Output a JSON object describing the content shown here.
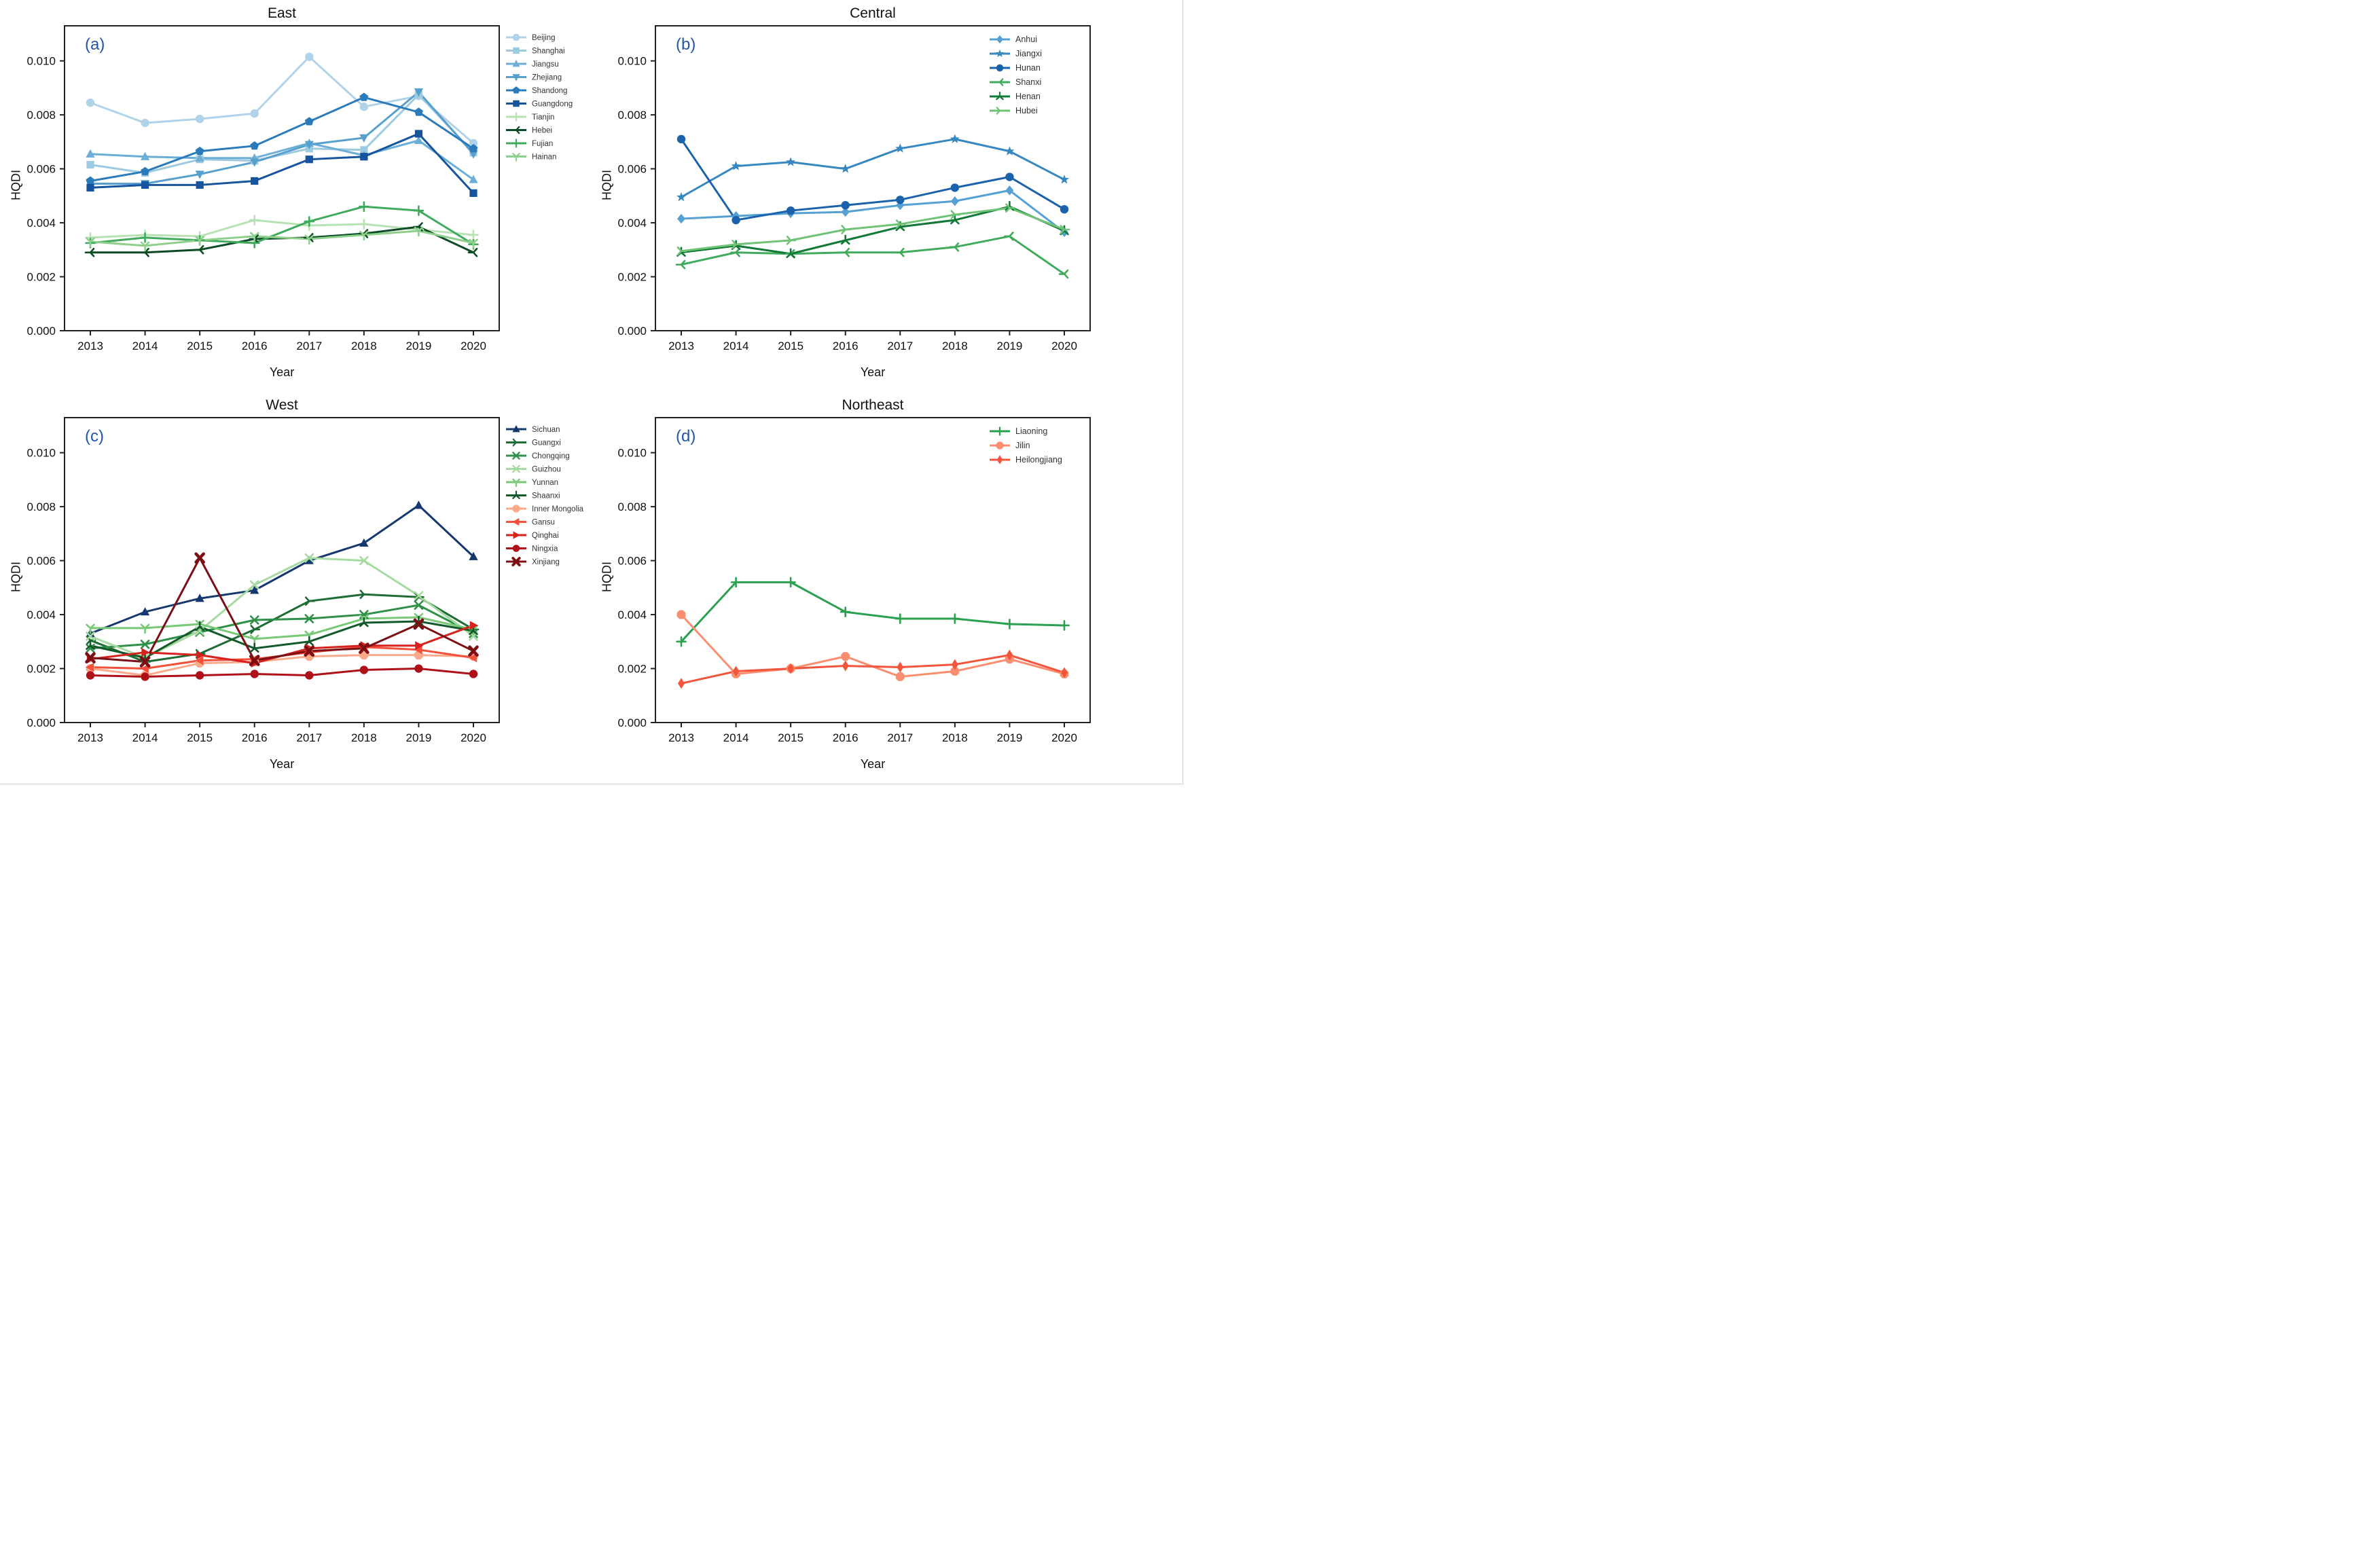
{
  "figure": {
    "ylabel": "HQDI",
    "xlabel": "Year",
    "frame_color": "#222222",
    "letter_color": "#2456a4"
  },
  "chart_data": [
    {
      "type": "line",
      "title": "East",
      "panel_letter": "(a)",
      "xlabel": "Year",
      "ylabel": "HQDI",
      "x": [
        2013,
        2014,
        2015,
        2016,
        2017,
        2018,
        2019,
        2020
      ],
      "ylim": [
        0,
        0.0113
      ],
      "yticks": [
        0.0,
        0.002,
        0.004,
        0.006,
        0.008,
        0.01
      ],
      "legend_position": "outside-right",
      "series": [
        {
          "name": "Beijing",
          "color": "#b0d3ea",
          "marker": "circle",
          "values": [
            0.00845,
            0.0077,
            0.00785,
            0.00805,
            0.01015,
            0.0083,
            0.0087,
            0.00695
          ]
        },
        {
          "name": "Shanghai",
          "color": "#9ecae1",
          "marker": "square",
          "values": [
            0.00615,
            0.00585,
            0.00635,
            0.0063,
            0.00675,
            0.0067,
            0.00875,
            0.0066
          ]
        },
        {
          "name": "Jiangsu",
          "color": "#6baed6",
          "marker": "triangle-up",
          "values": [
            0.00655,
            0.00645,
            0.0064,
            0.0064,
            0.00695,
            0.0065,
            0.00705,
            0.0056
          ]
        },
        {
          "name": "Zhejiang",
          "color": "#57a0ce",
          "marker": "triangle-down",
          "values": [
            0.00545,
            0.00545,
            0.0058,
            0.00625,
            0.0069,
            0.00715,
            0.00885,
            0.00655
          ]
        },
        {
          "name": "Shandong",
          "color": "#2b7bba",
          "marker": "pentagon",
          "values": [
            0.00555,
            0.0059,
            0.00665,
            0.00685,
            0.00775,
            0.00865,
            0.0081,
            0.00675
          ]
        },
        {
          "name": "Guangdong",
          "color": "#16549e",
          "marker": "square",
          "values": [
            0.0053,
            0.0054,
            0.0054,
            0.00555,
            0.00635,
            0.00645,
            0.0073,
            0.0051
          ]
        },
        {
          "name": "Tianjin",
          "color": "#b8e2b3",
          "marker": "plus",
          "values": [
            0.00345,
            0.00355,
            0.0035,
            0.0041,
            0.0039,
            0.00395,
            0.00375,
            0.00355
          ]
        },
        {
          "name": "Hebei",
          "color": "#0b4c26",
          "marker": "tri-right",
          "values": [
            0.0029,
            0.0029,
            0.003,
            0.0034,
            0.00345,
            0.0036,
            0.00385,
            0.0029
          ]
        },
        {
          "name": "Fujian",
          "color": "#41ab5d",
          "marker": "plus",
          "values": [
            0.00325,
            0.00345,
            0.00335,
            0.00325,
            0.00405,
            0.0046,
            0.00445,
            0.0032
          ]
        },
        {
          "name": "Hainan",
          "color": "#8ed08b",
          "marker": "tri-up",
          "values": [
            0.0033,
            0.00315,
            0.00335,
            0.0035,
            0.0034,
            0.00355,
            0.0037,
            0.00325
          ]
        }
      ]
    },
    {
      "type": "line",
      "title": "Central",
      "panel_letter": "(b)",
      "xlabel": "Year",
      "ylabel": "HQDI",
      "x": [
        2013,
        2014,
        2015,
        2016,
        2017,
        2018,
        2019,
        2020
      ],
      "ylim": [
        0,
        0.0113
      ],
      "yticks": [
        0.0,
        0.002,
        0.004,
        0.006,
        0.008,
        0.01
      ],
      "legend_position": "inside-top-right",
      "series": [
        {
          "name": "Anhui",
          "color": "#55a1d4",
          "marker": "diamond",
          "values": [
            0.00415,
            0.00425,
            0.00435,
            0.0044,
            0.00465,
            0.0048,
            0.0052,
            0.00365
          ]
        },
        {
          "name": "Jiangxi",
          "color": "#3787c0",
          "marker": "star",
          "values": [
            0.00495,
            0.0061,
            0.00625,
            0.006,
            0.00675,
            0.0071,
            0.00665,
            0.0056
          ]
        },
        {
          "name": "Hunan",
          "color": "#1a63ac",
          "marker": "circle",
          "values": [
            0.0071,
            0.0041,
            0.00445,
            0.00465,
            0.00485,
            0.0053,
            0.0057,
            0.0045
          ]
        },
        {
          "name": "Shanxi",
          "color": "#41ab5d",
          "marker": "tri-right",
          "values": [
            0.00245,
            0.0029,
            0.00285,
            0.0029,
            0.0029,
            0.0031,
            0.0035,
            0.0021
          ]
        },
        {
          "name": "Henan",
          "color": "#117936",
          "marker": "tri-down",
          "values": [
            0.0029,
            0.00315,
            0.00285,
            0.00335,
            0.00385,
            0.0041,
            0.0046,
            0.0037
          ]
        },
        {
          "name": "Hubei",
          "color": "#6fc276",
          "marker": "tri-left",
          "values": [
            0.00295,
            0.0032,
            0.00335,
            0.00375,
            0.00395,
            0.0043,
            0.00455,
            0.00375
          ]
        }
      ]
    },
    {
      "type": "line",
      "title": "West",
      "panel_letter": "(c)",
      "xlabel": "Year",
      "ylabel": "HQDI",
      "x": [
        2013,
        2014,
        2015,
        2016,
        2017,
        2018,
        2019,
        2020
      ],
      "ylim": [
        0,
        0.0113
      ],
      "yticks": [
        0.0,
        0.002,
        0.004,
        0.006,
        0.008,
        0.01
      ],
      "legend_position": "outside-right",
      "series": [
        {
          "name": "Sichuan",
          "color": "#15396f",
          "marker": "triangle-up",
          "values": [
            0.0033,
            0.0041,
            0.0046,
            0.0049,
            0.006,
            0.00665,
            0.00805,
            0.00615
          ]
        },
        {
          "name": "Guangxi",
          "color": "#1d6d34",
          "marker": "tri-left",
          "values": [
            0.00305,
            0.00225,
            0.00255,
            0.00345,
            0.0045,
            0.00475,
            0.00465,
            0.00345
          ]
        },
        {
          "name": "Chongqing",
          "color": "#2f9149",
          "marker": "x",
          "values": [
            0.00275,
            0.0029,
            0.00335,
            0.0038,
            0.00385,
            0.004,
            0.00435,
            0.0033
          ]
        },
        {
          "name": "Guizhou",
          "color": "#a5daa0",
          "marker": "x",
          "values": [
            0.0032,
            0.0024,
            0.0034,
            0.0051,
            0.0061,
            0.006,
            0.0047,
            0.0032
          ]
        },
        {
          "name": "Yunnan",
          "color": "#79c877",
          "marker": "tri-up",
          "values": [
            0.0035,
            0.0035,
            0.00365,
            0.0031,
            0.00325,
            0.00385,
            0.0039,
            0.00345
          ]
        },
        {
          "name": "Shaanxi",
          "color": "#12592b",
          "marker": "tri-down",
          "values": [
            0.00285,
            0.0024,
            0.00355,
            0.00275,
            0.003,
            0.0037,
            0.00375,
            0.0034
          ]
        },
        {
          "name": "Inner Mongolia",
          "color": "#fba98b",
          "marker": "octagon",
          "values": [
            0.002,
            0.00175,
            0.0022,
            0.00225,
            0.00245,
            0.0025,
            0.0025,
            0.00245
          ]
        },
        {
          "name": "Gansu",
          "color": "#f44f39",
          "marker": "triangle-left",
          "values": [
            0.00205,
            0.002,
            0.0023,
            0.00235,
            0.0026,
            0.0028,
            0.0027,
            0.0024
          ]
        },
        {
          "name": "Qinghai",
          "color": "#d7211e",
          "marker": "triangle-right",
          "values": [
            0.00235,
            0.0026,
            0.0025,
            0.0022,
            0.00275,
            0.00285,
            0.00285,
            0.0036
          ]
        },
        {
          "name": "Ningxia",
          "color": "#ae1117",
          "marker": "circle",
          "values": [
            0.00175,
            0.0017,
            0.00175,
            0.0018,
            0.00175,
            0.00195,
            0.002,
            0.0018
          ]
        },
        {
          "name": "Xinjiang",
          "color": "#7c0f14",
          "marker": "boldx",
          "values": [
            0.0024,
            0.00225,
            0.0061,
            0.0023,
            0.00265,
            0.00275,
            0.00365,
            0.00265
          ]
        }
      ]
    },
    {
      "type": "line",
      "title": "Northeast",
      "panel_letter": "(d)",
      "xlabel": "Year",
      "ylabel": "HQDI",
      "x": [
        2013,
        2014,
        2015,
        2016,
        2017,
        2018,
        2019,
        2020
      ],
      "ylim": [
        0,
        0.0113
      ],
      "yticks": [
        0.0,
        0.002,
        0.004,
        0.006,
        0.008,
        0.01
      ],
      "legend_position": "inside-top-right",
      "series": [
        {
          "name": "Liaoning",
          "color": "#2aa14e",
          "marker": "plus",
          "values": [
            0.003,
            0.0052,
            0.0052,
            0.0041,
            0.00385,
            0.00385,
            0.00365,
            0.0036
          ]
        },
        {
          "name": "Jilin",
          "color": "#fb8e6e",
          "marker": "octagon",
          "values": [
            0.004,
            0.0018,
            0.002,
            0.00245,
            0.0017,
            0.0019,
            0.00235,
            0.0018
          ]
        },
        {
          "name": "Heilongjiang",
          "color": "#f3553c",
          "marker": "diamond-thin",
          "values": [
            0.00145,
            0.0019,
            0.002,
            0.0021,
            0.00205,
            0.00215,
            0.0025,
            0.00185
          ]
        }
      ]
    }
  ]
}
